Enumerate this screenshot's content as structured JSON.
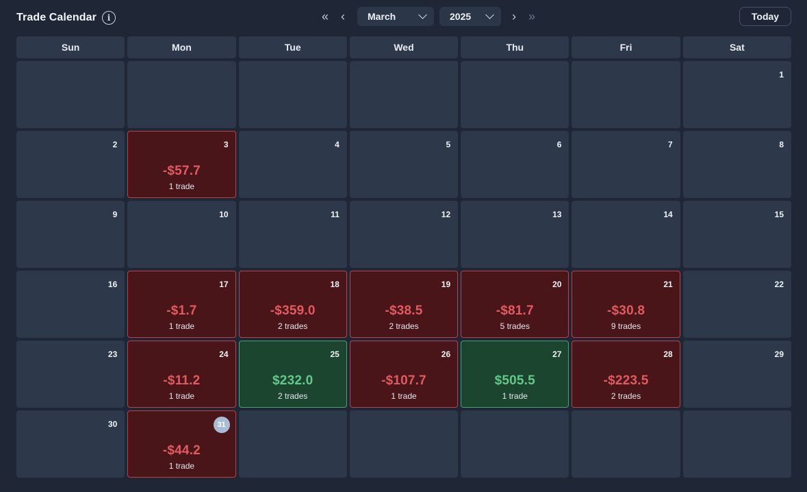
{
  "header": {
    "title": "Trade Calendar",
    "info_icon": "i",
    "nav": {
      "prev_year_icon": "«",
      "prev_month_icon": "‹",
      "next_month_icon": "›",
      "next_year_icon": "»"
    },
    "month": "March",
    "year": "2025",
    "today_label": "Today"
  },
  "colors": {
    "background": "#1f2737",
    "cell": "#2d384b",
    "loss_bg": "#4a1519",
    "loss_text": "#e15a62",
    "win_bg": "#1c4530",
    "win_text": "#63c98a"
  },
  "weekdays": [
    "Sun",
    "Mon",
    "Tue",
    "Wed",
    "Thu",
    "Fri",
    "Sat"
  ],
  "days": [
    {
      "n": "",
      "pnl": "",
      "trades": "",
      "status": "empty"
    },
    {
      "n": "",
      "pnl": "",
      "trades": "",
      "status": "empty"
    },
    {
      "n": "",
      "pnl": "",
      "trades": "",
      "status": "empty"
    },
    {
      "n": "",
      "pnl": "",
      "trades": "",
      "status": "empty"
    },
    {
      "n": "",
      "pnl": "",
      "trades": "",
      "status": "empty"
    },
    {
      "n": "",
      "pnl": "",
      "trades": "",
      "status": "empty"
    },
    {
      "n": "1",
      "pnl": "",
      "trades": "",
      "status": "none"
    },
    {
      "n": "2",
      "pnl": "",
      "trades": "",
      "status": "none"
    },
    {
      "n": "3",
      "pnl": "-$57.7",
      "trades": "1 trade",
      "status": "loss"
    },
    {
      "n": "4",
      "pnl": "",
      "trades": "",
      "status": "none"
    },
    {
      "n": "5",
      "pnl": "",
      "trades": "",
      "status": "none"
    },
    {
      "n": "6",
      "pnl": "",
      "trades": "",
      "status": "none"
    },
    {
      "n": "7",
      "pnl": "",
      "trades": "",
      "status": "none"
    },
    {
      "n": "8",
      "pnl": "",
      "trades": "",
      "status": "none"
    },
    {
      "n": "9",
      "pnl": "",
      "trades": "",
      "status": "none"
    },
    {
      "n": "10",
      "pnl": "",
      "trades": "",
      "status": "none"
    },
    {
      "n": "11",
      "pnl": "",
      "trades": "",
      "status": "none"
    },
    {
      "n": "12",
      "pnl": "",
      "trades": "",
      "status": "none"
    },
    {
      "n": "13",
      "pnl": "",
      "trades": "",
      "status": "none"
    },
    {
      "n": "14",
      "pnl": "",
      "trades": "",
      "status": "none"
    },
    {
      "n": "15",
      "pnl": "",
      "trades": "",
      "status": "none"
    },
    {
      "n": "16",
      "pnl": "",
      "trades": "",
      "status": "none"
    },
    {
      "n": "17",
      "pnl": "-$1.7",
      "trades": "1 trade",
      "status": "loss"
    },
    {
      "n": "18",
      "pnl": "-$359.0",
      "trades": "2 trades",
      "status": "loss"
    },
    {
      "n": "19",
      "pnl": "-$38.5",
      "trades": "2 trades",
      "status": "loss"
    },
    {
      "n": "20",
      "pnl": "-$81.7",
      "trades": "5 trades",
      "status": "loss"
    },
    {
      "n": "21",
      "pnl": "-$30.8",
      "trades": "9 trades",
      "status": "loss"
    },
    {
      "n": "22",
      "pnl": "",
      "trades": "",
      "status": "none"
    },
    {
      "n": "23",
      "pnl": "",
      "trades": "",
      "status": "none"
    },
    {
      "n": "24",
      "pnl": "-$11.2",
      "trades": "1 trade",
      "status": "loss"
    },
    {
      "n": "25",
      "pnl": "$232.0",
      "trades": "2 trades",
      "status": "win"
    },
    {
      "n": "26",
      "pnl": "-$107.7",
      "trades": "1 trade",
      "status": "loss"
    },
    {
      "n": "27",
      "pnl": "$505.5",
      "trades": "1 trade",
      "status": "win"
    },
    {
      "n": "28",
      "pnl": "-$223.5",
      "trades": "2 trades",
      "status": "loss"
    },
    {
      "n": "29",
      "pnl": "",
      "trades": "",
      "status": "none"
    },
    {
      "n": "30",
      "pnl": "",
      "trades": "",
      "status": "none"
    },
    {
      "n": "31",
      "pnl": "-$44.2",
      "trades": "1 trade",
      "status": "loss",
      "today": true
    },
    {
      "n": "",
      "pnl": "",
      "trades": "",
      "status": "empty"
    },
    {
      "n": "",
      "pnl": "",
      "trades": "",
      "status": "empty"
    },
    {
      "n": "",
      "pnl": "",
      "trades": "",
      "status": "empty"
    },
    {
      "n": "",
      "pnl": "",
      "trades": "",
      "status": "empty"
    },
    {
      "n": "",
      "pnl": "",
      "trades": "",
      "status": "empty"
    }
  ]
}
